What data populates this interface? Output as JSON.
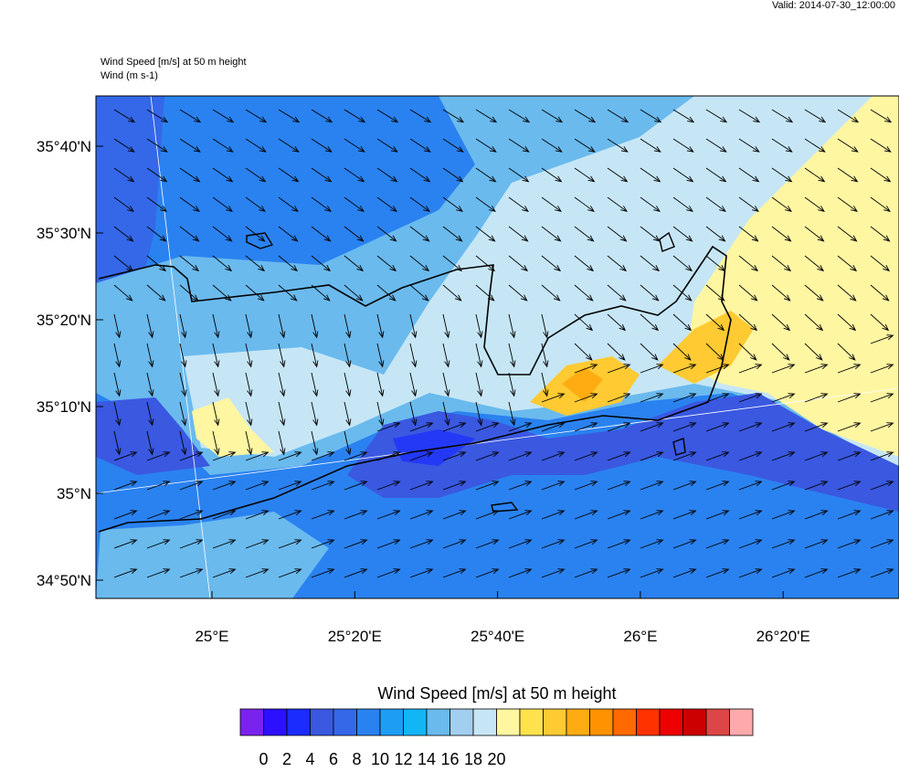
{
  "valid": "Valid: 2014-07-30_12:00:00",
  "titles": [
    "Wind Speed [m/s] at 50 m height",
    "Wind   (m s-1)"
  ],
  "lat_labels": [
    "35°40'N",
    "35°30'N",
    "35°20'N",
    "35°10'N",
    "35°N",
    "34°50'N"
  ],
  "lon_labels": [
    "25°E",
    "25°20'E",
    "25°40'E",
    "26°E",
    "26°20'E"
  ],
  "colorbar": {
    "title": "Wind Speed [m/s] at 50 m height",
    "colors": [
      "#7c22ee",
      "#2c10ff",
      "#1a2cff",
      "#3a58e0",
      "#3468e8",
      "#2a82f0",
      "#1e9df5",
      "#12b6f6",
      "#6abaee",
      "#a2ceef",
      "#c6e6f6",
      "#fff6a2",
      "#ffe24c",
      "#ffca32",
      "#ffac12",
      "#ff9200",
      "#ff6a00",
      "#ff3200",
      "#ee0000",
      "#cc0000",
      "#dd4646",
      "#ffaaaa"
    ],
    "labels": [
      0,
      2,
      4,
      6,
      8,
      10,
      12,
      14,
      16,
      18,
      20
    ]
  }
}
